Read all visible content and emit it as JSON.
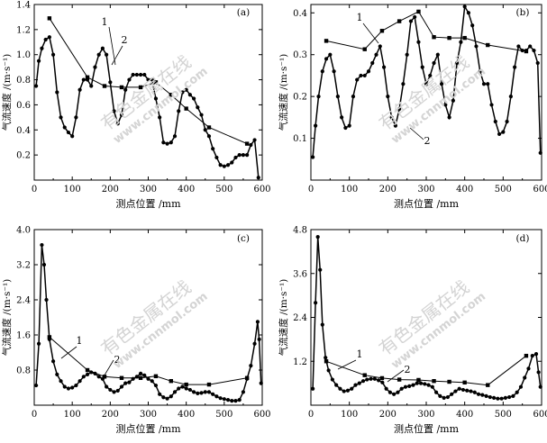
{
  "watermark": {
    "text": "有色金属在线",
    "url": "www.cnnmol.com"
  },
  "chart_data": [
    {
      "type": "line",
      "panel_label": "(a)",
      "xlabel": "测点位置 /mm",
      "ylabel": "气流速度 /(m·s⁻¹)",
      "xlim": [
        0,
        600
      ],
      "ylim": [
        0,
        1.4
      ],
      "xticks": [
        0,
        100,
        200,
        300,
        400,
        500,
        600
      ],
      "xtick_labels": [
        "0",
        "100",
        "200",
        "300",
        "400",
        "500",
        "600"
      ],
      "yticks": [
        0.2,
        0.4,
        0.6,
        0.8,
        1.0,
        1.2,
        1.4
      ],
      "ytick_labels": [
        "0.2",
        "0.4",
        "0.6",
        "0.8",
        "1.0",
        "1.2",
        "1.4"
      ],
      "series": [
        {
          "name": "1",
          "marker": "square",
          "x": [
            40,
            140,
            185,
            230,
            280,
            320,
            360,
            400,
            460,
            560
          ],
          "y": [
            1.29,
            0.82,
            0.75,
            0.74,
            0.74,
            0.78,
            0.68,
            0.57,
            0.42,
            0.29
          ]
        },
        {
          "name": "2",
          "marker": "dot",
          "x": [
            5,
            12,
            20,
            30,
            40,
            50,
            60,
            70,
            80,
            90,
            100,
            110,
            120,
            130,
            140,
            150,
            160,
            170,
            180,
            190,
            200,
            210,
            220,
            230,
            240,
            250,
            260,
            270,
            280,
            290,
            300,
            310,
            320,
            330,
            340,
            350,
            360,
            370,
            380,
            390,
            400,
            410,
            420,
            430,
            440,
            450,
            460,
            470,
            480,
            490,
            500,
            510,
            520,
            530,
            540,
            550,
            560,
            570,
            580,
            590
          ],
          "y": [
            0.75,
            0.95,
            1.05,
            1.12,
            1.14,
            1.0,
            0.7,
            0.5,
            0.42,
            0.38,
            0.35,
            0.5,
            0.72,
            0.8,
            0.8,
            0.75,
            0.9,
            1.0,
            1.05,
            1.0,
            0.78,
            0.55,
            0.45,
            0.52,
            0.72,
            0.8,
            0.84,
            0.84,
            0.84,
            0.84,
            0.8,
            0.8,
            0.65,
            0.5,
            0.3,
            0.29,
            0.3,
            0.35,
            0.55,
            0.7,
            0.72,
            0.68,
            0.65,
            0.58,
            0.52,
            0.4,
            0.35,
            0.25,
            0.18,
            0.12,
            0.11,
            0.12,
            0.14,
            0.18,
            0.2,
            0.2,
            0.2,
            0.28,
            0.32,
            0.02
          ]
        }
      ]
    },
    {
      "type": "line",
      "panel_label": "(b)",
      "xlabel": "测点位置 /mm",
      "ylabel": "气流速度 /(m·s⁻¹)",
      "xlim": [
        0,
        600
      ],
      "ylim": [
        0,
        0.42
      ],
      "xticks": [
        0,
        100,
        200,
        300,
        400,
        500,
        600
      ],
      "xtick_labels": [
        "0",
        "100",
        "200",
        "300",
        "400",
        "500",
        "600"
      ],
      "yticks": [
        0.1,
        0.2,
        0.3,
        0.4
      ],
      "ytick_labels": [
        "0.1",
        "0.2",
        "0.3",
        "0.4"
      ],
      "series": [
        {
          "name": "1",
          "marker": "square",
          "x": [
            40,
            140,
            185,
            230,
            280,
            320,
            360,
            400,
            460,
            560
          ],
          "y": [
            0.333,
            0.313,
            0.357,
            0.38,
            0.403,
            0.342,
            0.34,
            0.34,
            0.323,
            0.308
          ]
        },
        {
          "name": "2",
          "marker": "dot",
          "x": [
            5,
            12,
            20,
            30,
            40,
            50,
            60,
            70,
            80,
            90,
            100,
            110,
            120,
            130,
            140,
            150,
            160,
            170,
            180,
            190,
            200,
            210,
            220,
            230,
            240,
            250,
            260,
            270,
            280,
            290,
            300,
            310,
            320,
            330,
            340,
            350,
            360,
            370,
            380,
            390,
            400,
            410,
            420,
            430,
            440,
            450,
            460,
            470,
            480,
            490,
            500,
            510,
            520,
            530,
            540,
            550,
            560,
            570,
            580,
            590,
            597
          ],
          "y": [
            0.055,
            0.13,
            0.2,
            0.26,
            0.29,
            0.3,
            0.26,
            0.2,
            0.15,
            0.125,
            0.13,
            0.2,
            0.24,
            0.25,
            0.25,
            0.26,
            0.28,
            0.3,
            0.32,
            0.27,
            0.2,
            0.15,
            0.13,
            0.17,
            0.23,
            0.3,
            0.38,
            0.39,
            0.33,
            0.27,
            0.23,
            0.25,
            0.28,
            0.3,
            0.23,
            0.18,
            0.15,
            0.19,
            0.28,
            0.33,
            0.415,
            0.4,
            0.37,
            0.32,
            0.26,
            0.23,
            0.23,
            0.18,
            0.14,
            0.11,
            0.115,
            0.14,
            0.2,
            0.27,
            0.32,
            0.31,
            0.31,
            0.32,
            0.31,
            0.28,
            0.065
          ]
        }
      ]
    },
    {
      "type": "line",
      "panel_label": "(c)",
      "xlabel": "测点位置 /mm",
      "ylabel": "气流速度 /(m·s⁻¹)",
      "xlim": [
        0,
        600
      ],
      "ylim": [
        0,
        4.0
      ],
      "xticks": [
        0,
        100,
        200,
        300,
        400,
        500,
        600
      ],
      "xtick_labels": [
        "0",
        "100",
        "200",
        "300",
        "400",
        "500",
        "600"
      ],
      "yticks": [
        0.8,
        1.6,
        2.4,
        3.2,
        4.0
      ],
      "ytick_labels": [
        "0.8",
        "1.6",
        "2.4",
        "3.2",
        "4.0"
      ],
      "series": [
        {
          "name": "1",
          "marker": "square",
          "x": [
            40,
            140,
            185,
            230,
            280,
            320,
            360,
            400,
            460,
            560
          ],
          "y": [
            1.55,
            0.8,
            0.65,
            0.62,
            0.62,
            0.66,
            0.55,
            0.47,
            0.47,
            0.62
          ]
        },
        {
          "name": "2",
          "marker": "dot",
          "x": [
            5,
            12,
            20,
            26,
            32,
            40,
            50,
            60,
            70,
            80,
            90,
            100,
            110,
            120,
            130,
            140,
            150,
            160,
            170,
            180,
            190,
            200,
            210,
            220,
            230,
            240,
            250,
            260,
            270,
            280,
            290,
            300,
            310,
            320,
            330,
            340,
            350,
            360,
            370,
            380,
            390,
            400,
            410,
            420,
            430,
            440,
            450,
            460,
            470,
            480,
            490,
            500,
            510,
            520,
            530,
            540,
            550,
            560,
            570,
            580,
            588,
            592,
            597
          ],
          "y": [
            0.45,
            1.4,
            3.65,
            3.2,
            2.4,
            1.5,
            1.0,
            0.7,
            0.55,
            0.42,
            0.38,
            0.4,
            0.45,
            0.55,
            0.65,
            0.7,
            0.75,
            0.72,
            0.65,
            0.6,
            0.42,
            0.35,
            0.3,
            0.33,
            0.42,
            0.5,
            0.52,
            0.6,
            0.65,
            0.72,
            0.68,
            0.6,
            0.55,
            0.45,
            0.25,
            0.18,
            0.15,
            0.2,
            0.3,
            0.38,
            0.42,
            0.38,
            0.35,
            0.3,
            0.27,
            0.28,
            0.3,
            0.3,
            0.25,
            0.2,
            0.16,
            0.14,
            0.12,
            0.1,
            0.1,
            0.12,
            0.3,
            0.6,
            0.9,
            1.4,
            1.9,
            1.5,
            0.5
          ]
        }
      ]
    },
    {
      "type": "line",
      "panel_label": "(d)",
      "xlabel": "测点位置 /mm",
      "ylabel": "气流速度 /(m·s⁻¹)",
      "xlim": [
        0,
        600
      ],
      "ylim": [
        0,
        4.8
      ],
      "xticks": [
        0,
        100,
        200,
        300,
        400,
        500,
        600
      ],
      "xtick_labels": [
        "0",
        "100",
        "200",
        "300",
        "400",
        "500",
        "600"
      ],
      "yticks": [
        1.2,
        2.4,
        3.6,
        4.8
      ],
      "ytick_labels": [
        "1.2",
        "2.4",
        "3.6",
        "4.8"
      ],
      "series": [
        {
          "name": "1",
          "marker": "square",
          "x": [
            40,
            140,
            185,
            230,
            280,
            320,
            360,
            400,
            460,
            560
          ],
          "y": [
            1.2,
            0.82,
            0.74,
            0.7,
            0.69,
            0.66,
            0.64,
            0.62,
            0.55,
            1.35
          ]
        },
        {
          "name": "2",
          "marker": "dot",
          "x": [
            5,
            12,
            18,
            24,
            30,
            38,
            46,
            56,
            66,
            76,
            86,
            96,
            106,
            116,
            126,
            136,
            146,
            156,
            166,
            176,
            186,
            196,
            206,
            216,
            226,
            236,
            246,
            256,
            266,
            276,
            286,
            296,
            306,
            316,
            326,
            336,
            346,
            356,
            366,
            376,
            386,
            396,
            406,
            416,
            426,
            436,
            446,
            456,
            466,
            476,
            486,
            496,
            506,
            516,
            526,
            536,
            546,
            556,
            566,
            576,
            586,
            592,
            597
          ],
          "y": [
            0.45,
            2.8,
            4.6,
            3.7,
            2.2,
            1.3,
            0.95,
            0.7,
            0.55,
            0.45,
            0.38,
            0.4,
            0.45,
            0.55,
            0.6,
            0.66,
            0.7,
            0.72,
            0.72,
            0.68,
            0.62,
            0.45,
            0.35,
            0.3,
            0.35,
            0.45,
            0.5,
            0.52,
            0.55,
            0.6,
            0.6,
            0.58,
            0.55,
            0.5,
            0.35,
            0.25,
            0.2,
            0.22,
            0.3,
            0.38,
            0.45,
            0.42,
            0.4,
            0.38,
            0.35,
            0.3,
            0.28,
            0.25,
            0.22,
            0.2,
            0.18,
            0.18,
            0.2,
            0.22,
            0.25,
            0.35,
            0.5,
            0.75,
            1.0,
            1.35,
            1.4,
            0.9,
            0.5
          ]
        }
      ]
    }
  ]
}
